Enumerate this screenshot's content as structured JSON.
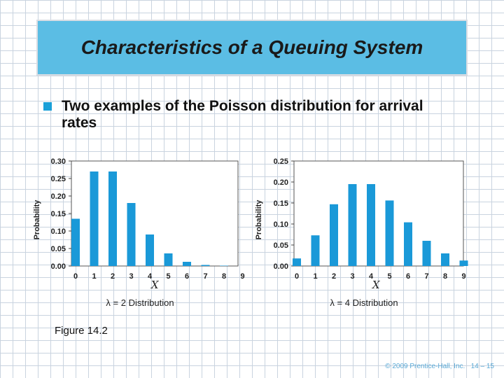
{
  "slide": {
    "title": "Characteristics of a Queuing System",
    "bullet": "Two examples of the Poisson distribution for arrival rates",
    "figure_label": "Figure 14.2",
    "footer": "© 2009 Prentice-Hall, Inc.   14 – 15"
  },
  "colors": {
    "bar": "#1a99d8",
    "title_bg": "#5bbde4",
    "bullet": "#1aa0d8"
  },
  "chart_data": [
    {
      "type": "bar",
      "categories": [
        "0",
        "1",
        "2",
        "3",
        "4",
        "5",
        "6",
        "7",
        "8",
        "9"
      ],
      "values": [
        0.135,
        0.27,
        0.27,
        0.18,
        0.09,
        0.036,
        0.012,
        0.003,
        0.001,
        0.0002
      ],
      "xlabel": "X",
      "ylabel": "Probability",
      "caption": "λ = 2 Distribution",
      "yticks": [
        "0.00",
        "0.05",
        "0.10",
        "0.15",
        "0.20",
        "0.25",
        "0.30"
      ],
      "ylim": [
        0,
        0.3
      ]
    },
    {
      "type": "bar",
      "categories": [
        "0",
        "1",
        "2",
        "3",
        "4",
        "5",
        "6",
        "7",
        "8",
        "9"
      ],
      "values": [
        0.018,
        0.073,
        0.147,
        0.195,
        0.195,
        0.156,
        0.104,
        0.06,
        0.03,
        0.013
      ],
      "xlabel": "X",
      "ylabel": "Probability",
      "caption": "λ = 4 Distribution",
      "yticks": [
        "0.00",
        "0.05",
        "0.10",
        "0.15",
        "0.20",
        "0.25"
      ],
      "ylim": [
        0,
        0.25
      ]
    }
  ]
}
